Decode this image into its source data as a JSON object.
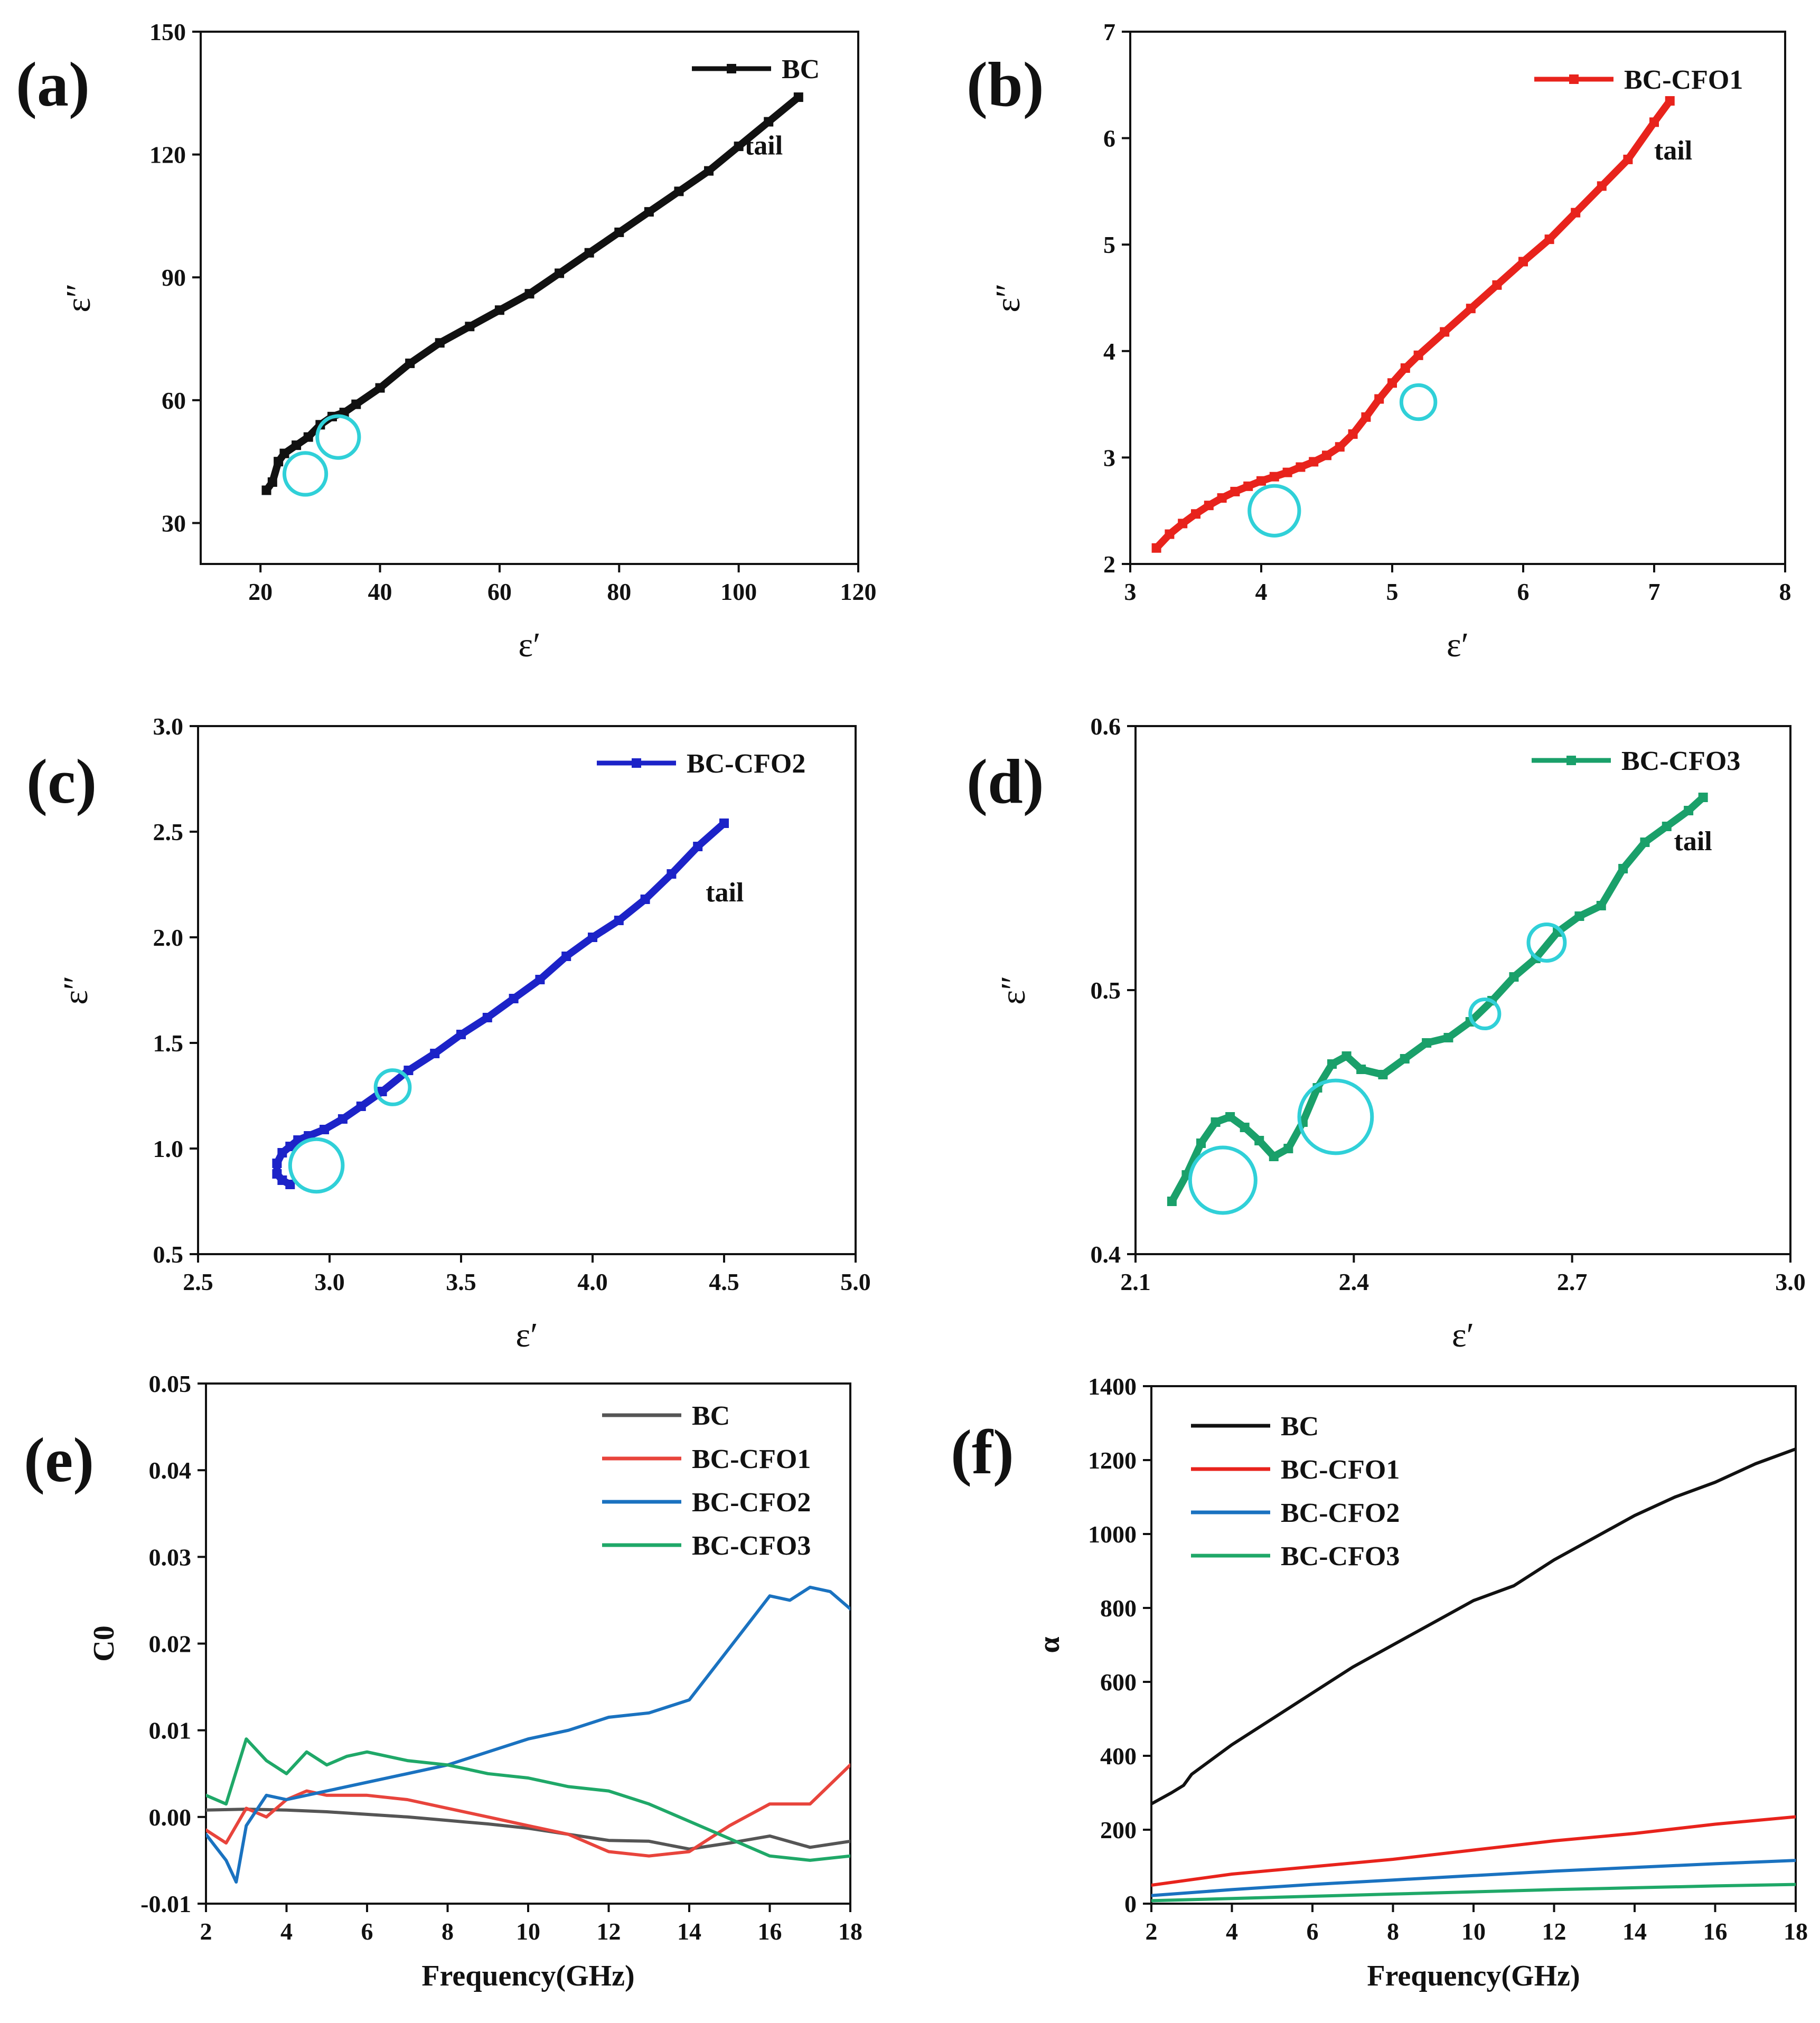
{
  "colors": {
    "BC": "#111111",
    "BC-CFO1": "#e8231c",
    "BC-CFO2": "#1c23c8",
    "BC-CFO3": "#1aa06a",
    "circle": "#30d0d8",
    "e_BC": "#555555",
    "e_BC-CFO1": "#e8443c",
    "e_BC-CFO2": "#1a72c0",
    "e_BC-CFO3": "#1fa868"
  },
  "chart_data": [
    {
      "id": "a",
      "letter": "(a)",
      "type": "line",
      "xlabel": "ε′",
      "ylabel": "ε″",
      "xlim": [
        10,
        120
      ],
      "ylim": [
        20,
        150
      ],
      "xticks": [
        20,
        40,
        60,
        80,
        100,
        120
      ],
      "yticks": [
        30,
        60,
        90,
        120,
        150
      ],
      "series": [
        {
          "name": "BC",
          "color_key": "BC",
          "x": [
            21,
            22,
            23,
            24,
            26,
            28,
            30,
            32,
            34,
            36,
            40,
            45,
            50,
            55,
            60,
            65,
            70,
            75,
            80,
            85,
            90,
            95,
            100,
            105,
            110
          ],
          "y": [
            38,
            40,
            45,
            47,
            49,
            51,
            54,
            56,
            57,
            59,
            63,
            69,
            74,
            78,
            82,
            86,
            91,
            96,
            101,
            106,
            111,
            116,
            122,
            128,
            134
          ]
        }
      ],
      "legend": [
        {
          "label": "BC",
          "color_key": "BC"
        }
      ],
      "annotation": {
        "text": "tail",
        "x": 101,
        "y": 120
      },
      "circles": [
        {
          "x": 27.5,
          "y": 42,
          "r": 3.5
        },
        {
          "x": 33,
          "y": 51,
          "r": 3.5
        }
      ]
    },
    {
      "id": "b",
      "letter": "(b)",
      "type": "line",
      "xlabel": "ε′",
      "ylabel": "ε″",
      "xlim": [
        3,
        8
      ],
      "ylim": [
        2,
        7
      ],
      "xticks": [
        3,
        4,
        5,
        6,
        7,
        8
      ],
      "yticks": [
        2,
        3,
        4,
        5,
        6,
        7
      ],
      "series": [
        {
          "name": "BC-CFO1",
          "color_key": "BC-CFO1",
          "x": [
            3.2,
            3.3,
            3.4,
            3.5,
            3.6,
            3.7,
            3.8,
            3.9,
            4.0,
            4.1,
            4.2,
            4.3,
            4.4,
            4.5,
            4.6,
            4.7,
            4.8,
            4.9,
            5.0,
            5.1,
            5.2,
            5.4,
            5.6,
            5.8,
            6.0,
            6.2,
            6.4,
            6.6,
            6.8,
            7.0,
            7.12
          ],
          "y": [
            2.15,
            2.28,
            2.38,
            2.47,
            2.55,
            2.62,
            2.68,
            2.73,
            2.78,
            2.82,
            2.86,
            2.91,
            2.96,
            3.02,
            3.1,
            3.22,
            3.38,
            3.55,
            3.7,
            3.84,
            3.96,
            4.18,
            4.4,
            4.62,
            4.84,
            5.05,
            5.3,
            5.55,
            5.8,
            6.15,
            6.35
          ]
        }
      ],
      "legend": [
        {
          "label": "BC-CFO1",
          "color_key": "BC-CFO1"
        }
      ],
      "annotation": {
        "text": "tail",
        "x": 7.0,
        "y": 5.8
      },
      "circles": [
        {
          "x": 4.1,
          "y": 2.5,
          "r": 0.19
        },
        {
          "x": 5.2,
          "y": 3.52,
          "r": 0.13
        }
      ]
    },
    {
      "id": "c",
      "letter": "(c)",
      "type": "line",
      "xlabel": "ε′",
      "ylabel": "ε″",
      "xlim": [
        2.5,
        5.0
      ],
      "ylim": [
        0.5,
        3.0
      ],
      "xticks": [
        2.5,
        3.0,
        3.5,
        4.0,
        4.5,
        5.0
      ],
      "yticks": [
        0.5,
        1.0,
        1.5,
        2.0,
        2.5,
        3.0
      ],
      "series": [
        {
          "name": "BC-CFO2",
          "color_key": "BC-CFO2",
          "x": [
            2.85,
            2.82,
            2.8,
            2.8,
            2.82,
            2.85,
            2.88,
            2.92,
            2.98,
            3.05,
            3.12,
            3.2,
            3.3,
            3.4,
            3.5,
            3.6,
            3.7,
            3.8,
            3.9,
            4.0,
            4.1,
            4.2,
            4.3,
            4.4,
            4.5
          ],
          "y": [
            0.83,
            0.85,
            0.88,
            0.93,
            0.98,
            1.01,
            1.04,
            1.06,
            1.09,
            1.14,
            1.2,
            1.27,
            1.37,
            1.45,
            1.54,
            1.62,
            1.71,
            1.8,
            1.91,
            2.0,
            2.08,
            2.18,
            2.3,
            2.43,
            2.54
          ]
        }
      ],
      "legend": [
        {
          "label": "BC-CFO2",
          "color_key": "BC-CFO2"
        }
      ],
      "annotation": {
        "text": "tail",
        "x": 4.43,
        "y": 2.17
      },
      "circles": [
        {
          "x": 2.95,
          "y": 0.92,
          "r": 0.1
        },
        {
          "x": 3.24,
          "y": 1.29,
          "r": 0.065
        }
      ]
    },
    {
      "id": "d",
      "letter": "(d)",
      "type": "line",
      "xlabel": "ε′",
      "ylabel": "ε″",
      "xlim": [
        2.1,
        3.0
      ],
      "ylim": [
        0.4,
        0.6
      ],
      "xticks": [
        2.1,
        2.4,
        2.7,
        3.0
      ],
      "yticks": [
        0.4,
        0.5,
        0.6
      ],
      "series": [
        {
          "name": "BC-CFO3",
          "color_key": "BC-CFO3",
          "x": [
            2.15,
            2.17,
            2.19,
            2.21,
            2.23,
            2.25,
            2.27,
            2.29,
            2.31,
            2.33,
            2.35,
            2.37,
            2.39,
            2.41,
            2.44,
            2.47,
            2.5,
            2.53,
            2.56,
            2.59,
            2.62,
            2.65,
            2.68,
            2.71,
            2.74,
            2.77,
            2.8,
            2.83,
            2.86,
            2.88
          ],
          "y": [
            0.42,
            0.43,
            0.442,
            0.45,
            0.452,
            0.448,
            0.443,
            0.437,
            0.44,
            0.45,
            0.463,
            0.472,
            0.475,
            0.47,
            0.468,
            0.474,
            0.48,
            0.482,
            0.488,
            0.496,
            0.505,
            0.512,
            0.522,
            0.528,
            0.532,
            0.546,
            0.556,
            0.562,
            0.568,
            0.573
          ]
        }
      ],
      "legend": [
        {
          "label": "BC-CFO3",
          "color_key": "BC-CFO3"
        }
      ],
      "annotation": {
        "text": "tail",
        "x": 2.84,
        "y": 0.553
      },
      "circles": [
        {
          "x": 2.22,
          "y": 0.428,
          "r": 0.045
        },
        {
          "x": 2.375,
          "y": 0.452,
          "r": 0.05
        },
        {
          "x": 2.58,
          "y": 0.491,
          "r": 0.02
        },
        {
          "x": 2.665,
          "y": 0.518,
          "r": 0.025
        }
      ]
    },
    {
      "id": "e",
      "letter": "(e)",
      "type": "line",
      "xlabel": "Frequency(GHz)",
      "ylabel": "C0",
      "xlim": [
        2,
        18
      ],
      "ylim": [
        -0.01,
        0.05
      ],
      "xticks": [
        2,
        4,
        6,
        8,
        10,
        12,
        14,
        16,
        18
      ],
      "yticks": [
        -0.01,
        0.0,
        0.01,
        0.02,
        0.03,
        0.04,
        0.05
      ],
      "ytick_labels": [
        "-0.01",
        "0.00",
        "0.01",
        "0.02",
        "0.03",
        "0.04",
        "0.05"
      ],
      "series": [
        {
          "name": "BC",
          "color_key": "e_BC",
          "x": [
            2,
            3,
            4,
            5,
            6,
            7,
            8,
            9,
            10,
            11,
            12,
            13,
            14,
            15,
            16,
            17,
            18
          ],
          "y": [
            0.0008,
            0.0009,
            0.0008,
            0.0006,
            0.0003,
            0.0,
            -0.0004,
            -0.0008,
            -0.0013,
            -0.002,
            -0.0027,
            -0.0028,
            -0.0037,
            -0.003,
            -0.0022,
            -0.0035,
            -0.0028
          ]
        },
        {
          "name": "BC-CFO1",
          "color_key": "e_BC-CFO1",
          "x": [
            2,
            2.5,
            3,
            3.5,
            4,
            4.5,
            5,
            6,
            7,
            8,
            9,
            10,
            11,
            12,
            13,
            14,
            15,
            16,
            17,
            18
          ],
          "y": [
            -0.0015,
            -0.003,
            0.001,
            0.0,
            0.002,
            0.003,
            0.0025,
            0.0025,
            0.002,
            0.001,
            0.0,
            -0.001,
            -0.002,
            -0.004,
            -0.0045,
            -0.004,
            -0.001,
            0.0015,
            0.0015,
            0.006
          ]
        },
        {
          "name": "BC-CFO2",
          "color_key": "e_BC-CFO2",
          "x": [
            2,
            2.5,
            2.75,
            3,
            3.5,
            4,
            5,
            6,
            7,
            8,
            9,
            10,
            11,
            12,
            13,
            14,
            15,
            15.5,
            16,
            16.5,
            17,
            17.5,
            18
          ],
          "y": [
            -0.002,
            -0.005,
            -0.0075,
            -0.001,
            0.0025,
            0.002,
            0.003,
            0.004,
            0.005,
            0.006,
            0.0075,
            0.009,
            0.01,
            0.0115,
            0.012,
            0.0135,
            0.0195,
            0.0225,
            0.0255,
            0.025,
            0.0265,
            0.026,
            0.024
          ]
        },
        {
          "name": "BC-CFO3",
          "color_key": "e_BC-CFO3",
          "x": [
            2,
            2.5,
            3,
            3.5,
            4,
            4.5,
            5,
            5.5,
            6,
            7,
            8,
            9,
            10,
            11,
            12,
            13,
            14,
            15,
            16,
            17,
            18
          ],
          "y": [
            0.0025,
            0.0015,
            0.009,
            0.0065,
            0.005,
            0.0075,
            0.006,
            0.007,
            0.0075,
            0.0065,
            0.006,
            0.005,
            0.0045,
            0.0035,
            0.003,
            0.0015,
            -0.0005,
            -0.0025,
            -0.0045,
            -0.005,
            -0.0045
          ]
        }
      ],
      "legend": [
        {
          "label": "BC",
          "color_key": "e_BC"
        },
        {
          "label": "BC-CFO1",
          "color_key": "e_BC-CFO1"
        },
        {
          "label": "BC-CFO2",
          "color_key": "e_BC-CFO2"
        },
        {
          "label": "BC-CFO3",
          "color_key": "e_BC-CFO3"
        }
      ]
    },
    {
      "id": "f",
      "letter": "(f)",
      "type": "line",
      "xlabel": "Frequency(GHz)",
      "ylabel": "α",
      "xlim": [
        2,
        18
      ],
      "ylim": [
        0,
        1400
      ],
      "xticks": [
        2,
        4,
        6,
        8,
        10,
        12,
        14,
        16,
        18
      ],
      "yticks": [
        0,
        200,
        400,
        600,
        800,
        1000,
        1200,
        1400
      ],
      "series": [
        {
          "name": "BC",
          "color_key": "BC",
          "x": [
            2,
            2.5,
            2.8,
            3,
            4,
            5,
            6,
            7,
            8,
            9,
            10,
            11,
            12,
            13,
            14,
            15,
            16,
            17,
            18
          ],
          "y": [
            270,
            300,
            320,
            350,
            430,
            500,
            570,
            640,
            700,
            760,
            820,
            860,
            930,
            990,
            1050,
            1100,
            1140,
            1190,
            1230
          ]
        },
        {
          "name": "BC-CFO1",
          "color_key": "BC-CFO1",
          "x": [
            2,
            4,
            6,
            8,
            10,
            12,
            14,
            16,
            18
          ],
          "y": [
            50,
            80,
            100,
            120,
            145,
            170,
            190,
            215,
            235
          ]
        },
        {
          "name": "BC-CFO2",
          "color_key": "e_BC-CFO2",
          "x": [
            2,
            4,
            6,
            8,
            10,
            12,
            14,
            16,
            18
          ],
          "y": [
            22,
            38,
            52,
            64,
            76,
            88,
            98,
            108,
            117
          ]
        },
        {
          "name": "BC-CFO3",
          "color_key": "e_BC-CFO3",
          "x": [
            2,
            4,
            6,
            8,
            10,
            12,
            14,
            16,
            18
          ],
          "y": [
            8,
            14,
            20,
            26,
            32,
            38,
            43,
            48,
            52
          ]
        }
      ],
      "legend": [
        {
          "label": "BC",
          "color_key": "BC"
        },
        {
          "label": "BC-CFO1",
          "color_key": "BC-CFO1"
        },
        {
          "label": "BC-CFO2",
          "color_key": "e_BC-CFO2"
        },
        {
          "label": "BC-CFO3",
          "color_key": "e_BC-CFO3"
        }
      ]
    }
  ]
}
